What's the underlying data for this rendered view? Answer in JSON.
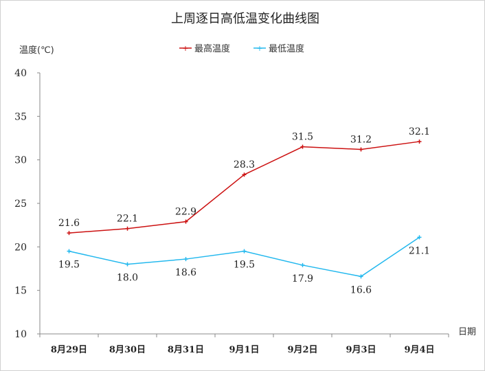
{
  "chart_data": {
    "type": "line",
    "title": "上周逐日高低温变化曲线图",
    "ylabel": "温度(℃)",
    "xlabel": "日期",
    "ylim": [
      10,
      40
    ],
    "yticks": [
      10,
      15,
      20,
      25,
      30,
      35,
      40
    ],
    "categories": [
      "8月29日",
      "8月30日",
      "8月31日",
      "9月1日",
      "9月2日",
      "9月3日",
      "9月4日"
    ],
    "legend_position": "top-center",
    "grid": false,
    "series": [
      {
        "name": "最高温度",
        "color": "#cc1010",
        "values": [
          21.6,
          22.1,
          22.9,
          28.3,
          31.5,
          31.2,
          32.1
        ],
        "label_pos": "above"
      },
      {
        "name": "最低温度",
        "color": "#22b8ee",
        "values": [
          19.5,
          18.0,
          18.6,
          19.5,
          17.9,
          16.6,
          21.1
        ],
        "label_pos": "below"
      }
    ]
  }
}
